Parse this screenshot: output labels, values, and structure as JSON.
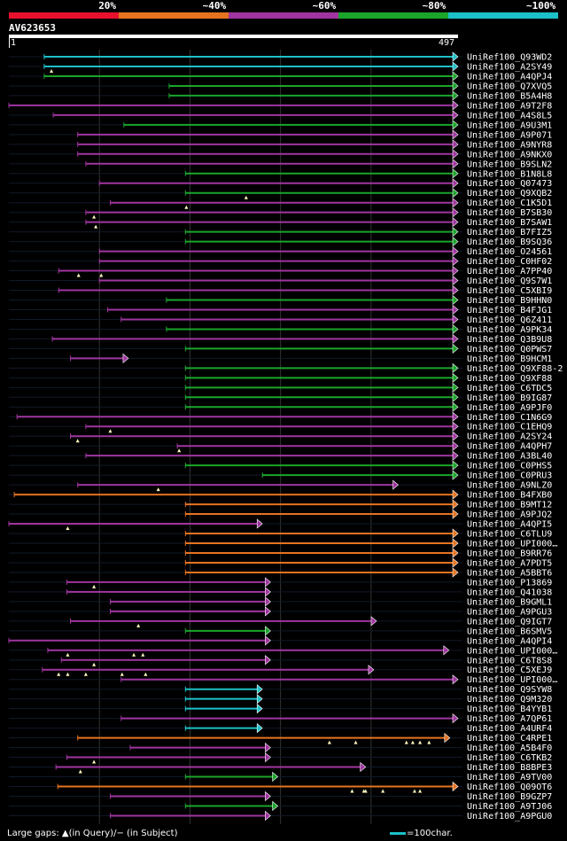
{
  "chart_data": {
    "type": "alignment-overview",
    "query": {
      "id": "AV623653",
      "start": 1,
      "end": 497
    },
    "legend": [
      {
        "label": "20%",
        "color": "#e8112d"
      },
      {
        "label": "~40%",
        "color": "#e67320"
      },
      {
        "label": "~60%",
        "color": "#a0359f"
      },
      {
        "label": "~80%",
        "color": "#1aa52a"
      },
      {
        "label": "~100%",
        "color": "#1cc0c8"
      }
    ],
    "footer": {
      "gaps": "Large gaps: ▲(in Query)/− (in Subject)",
      "scale": "=100char."
    },
    "hits": [
      {
        "name": "UniRef100_Q93WD2",
        "cls": 4,
        "start": 40,
        "end": 497,
        "arrow": true,
        "g": []
      },
      {
        "name": "UniRef100_A2SY49",
        "cls": 4,
        "start": 40,
        "end": 497,
        "arrow": true,
        "g": [
          48
        ]
      },
      {
        "name": "UniRef100_A4QPJ4",
        "cls": 3,
        "start": 40,
        "end": 497,
        "arrow": true,
        "g": []
      },
      {
        "name": "UniRef100_Q7XVQ5",
        "cls": 3,
        "start": 178,
        "end": 497,
        "arrow": true,
        "g": []
      },
      {
        "name": "UniRef100_B5A4H8",
        "cls": 3,
        "start": 178,
        "end": 497,
        "arrow": true,
        "g": []
      },
      {
        "name": "UniRef100_A9T2F8",
        "cls": 2,
        "start": 1,
        "end": 497,
        "arrow": true,
        "g": []
      },
      {
        "name": "UniRef100_A4S8L5",
        "cls": 2,
        "start": 50,
        "end": 497,
        "arrow": true,
        "g": []
      },
      {
        "name": "UniRef100_A9U3M1",
        "cls": 3,
        "start": 128,
        "end": 497,
        "arrow": true,
        "g": []
      },
      {
        "name": "UniRef100_A9P071",
        "cls": 2,
        "start": 77,
        "end": 497,
        "arrow": true,
        "g": []
      },
      {
        "name": "UniRef100_A9NYR8",
        "cls": 2,
        "start": 77,
        "end": 497,
        "arrow": true,
        "g": []
      },
      {
        "name": "UniRef100_A9NKX0",
        "cls": 2,
        "start": 77,
        "end": 497,
        "arrow": true,
        "g": []
      },
      {
        "name": "UniRef100_B9SLN2",
        "cls": 2,
        "start": 86,
        "end": 497,
        "arrow": true,
        "g": []
      },
      {
        "name": "UniRef100_B1N8L8",
        "cls": 3,
        "start": 196,
        "end": 497,
        "arrow": true,
        "g": []
      },
      {
        "name": "UniRef100_Q07473",
        "cls": 2,
        "start": 101,
        "end": 497,
        "arrow": true,
        "g": []
      },
      {
        "name": "UniRef100_Q9XQB2",
        "cls": 3,
        "start": 196,
        "end": 497,
        "arrow": true,
        "g": [
          263
        ]
      },
      {
        "name": "UniRef100_C1K5D1",
        "cls": 2,
        "start": 113,
        "end": 497,
        "arrow": true,
        "g": [
          197
        ]
      },
      {
        "name": "UniRef100_B7SB30",
        "cls": 2,
        "start": 86,
        "end": 497,
        "arrow": true,
        "g": [
          95
        ]
      },
      {
        "name": "UniRef100_B7SAW1",
        "cls": 2,
        "start": 86,
        "end": 497,
        "arrow": true,
        "g": [
          97
        ]
      },
      {
        "name": "UniRef100_B7FIZ5",
        "cls": 3,
        "start": 196,
        "end": 497,
        "arrow": true,
        "g": []
      },
      {
        "name": "UniRef100_B9SQ36",
        "cls": 3,
        "start": 196,
        "end": 497,
        "arrow": true,
        "g": []
      },
      {
        "name": "UniRef100_O24561",
        "cls": 2,
        "start": 101,
        "end": 497,
        "arrow": true,
        "g": []
      },
      {
        "name": "UniRef100_C0HF02",
        "cls": 2,
        "start": 101,
        "end": 497,
        "arrow": true,
        "g": []
      },
      {
        "name": "UniRef100_A7PP40",
        "cls": 2,
        "start": 56,
        "end": 497,
        "arrow": true,
        "g": [
          78,
          103
        ]
      },
      {
        "name": "UniRef100_Q9S7W1",
        "cls": 2,
        "start": 101,
        "end": 497,
        "arrow": true,
        "g": []
      },
      {
        "name": "UniRef100_C5XBI9",
        "cls": 2,
        "start": 56,
        "end": 497,
        "arrow": true,
        "g": []
      },
      {
        "name": "UniRef100_B9HHN0",
        "cls": 3,
        "start": 175,
        "end": 497,
        "arrow": true,
        "g": []
      },
      {
        "name": "UniRef100_B4FJG1",
        "cls": 2,
        "start": 110,
        "end": 497,
        "arrow": true,
        "g": []
      },
      {
        "name": "UniRef100_Q6Z411",
        "cls": 2,
        "start": 125,
        "end": 497,
        "arrow": true,
        "g": []
      },
      {
        "name": "UniRef100_A9PK34",
        "cls": 3,
        "start": 175,
        "end": 497,
        "arrow": true,
        "g": []
      },
      {
        "name": "UniRef100_Q3B9U8",
        "cls": 2,
        "start": 49,
        "end": 497,
        "arrow": true,
        "g": []
      },
      {
        "name": "UniRef100_Q0PWS7",
        "cls": 3,
        "start": 196,
        "end": 497,
        "arrow": true,
        "g": []
      },
      {
        "name": "UniRef100_B9HCM1",
        "cls": 2,
        "start": 69,
        "end": 133,
        "arrow": true,
        "g": []
      },
      {
        "name": "UniRef100_Q9XF88-2",
        "cls": 3,
        "start": 196,
        "end": 497,
        "arrow": true,
        "g": []
      },
      {
        "name": "UniRef100_Q9XF88",
        "cls": 3,
        "start": 196,
        "end": 497,
        "arrow": true,
        "g": []
      },
      {
        "name": "UniRef100_C6TDC5",
        "cls": 3,
        "start": 196,
        "end": 497,
        "arrow": true,
        "g": []
      },
      {
        "name": "UniRef100_B9IG87",
        "cls": 3,
        "start": 196,
        "end": 497,
        "arrow": true,
        "g": []
      },
      {
        "name": "UniRef100_A9PJF0",
        "cls": 3,
        "start": 196,
        "end": 497,
        "arrow": true,
        "g": []
      },
      {
        "name": "UniRef100_C1N6G9",
        "cls": 2,
        "start": 10,
        "end": 497,
        "arrow": true,
        "g": []
      },
      {
        "name": "UniRef100_C1EHQ9",
        "cls": 2,
        "start": 86,
        "end": 497,
        "arrow": true,
        "g": [
          113
        ]
      },
      {
        "name": "UniRef100_A2SY24",
        "cls": 2,
        "start": 69,
        "end": 497,
        "arrow": true,
        "g": [
          77
        ]
      },
      {
        "name": "UniRef100_A4QPH7",
        "cls": 2,
        "start": 187,
        "end": 497,
        "arrow": true,
        "g": [
          189
        ]
      },
      {
        "name": "UniRef100_A3BL40",
        "cls": 2,
        "start": 86,
        "end": 497,
        "arrow": true,
        "g": []
      },
      {
        "name": "UniRef100_C0PHS5",
        "cls": 3,
        "start": 196,
        "end": 497,
        "arrow": true,
        "g": []
      },
      {
        "name": "UniRef100_C0PRU3",
        "cls": 3,
        "start": 281,
        "end": 497,
        "arrow": true,
        "g": []
      },
      {
        "name": "UniRef100_A9NLZ0",
        "cls": 2,
        "start": 77,
        "end": 431,
        "arrow": true,
        "g": [
          166
        ]
      },
      {
        "name": "UniRef100_B4FXB0",
        "cls": 1,
        "start": 7,
        "end": 497,
        "arrow": true,
        "g": []
      },
      {
        "name": "UniRef100_B9MT12",
        "cls": 1,
        "start": 196,
        "end": 497,
        "arrow": true,
        "g": []
      },
      {
        "name": "UniRef100_A9PJQ2",
        "cls": 1,
        "start": 196,
        "end": 497,
        "arrow": true,
        "g": []
      },
      {
        "name": "UniRef100_A4QPI5",
        "cls": 2,
        "start": 1,
        "end": 281,
        "arrow": true,
        "g": [
          66
        ]
      },
      {
        "name": "UniRef100_C6TLU9",
        "cls": 1,
        "start": 196,
        "end": 497,
        "arrow": true,
        "g": []
      },
      {
        "name": "UniRef100_UPI000…",
        "cls": 1,
        "start": 196,
        "end": 497,
        "arrow": true,
        "g": []
      },
      {
        "name": "UniRef100_B9RR76",
        "cls": 1,
        "start": 196,
        "end": 497,
        "arrow": true,
        "g": []
      },
      {
        "name": "UniRef100_A7PDT5",
        "cls": 1,
        "start": 196,
        "end": 497,
        "arrow": true,
        "g": []
      },
      {
        "name": "UniRef100_A5BBT6",
        "cls": 1,
        "start": 196,
        "end": 497,
        "arrow": true,
        "g": []
      },
      {
        "name": "UniRef100_P13869",
        "cls": 2,
        "start": 65,
        "end": 290,
        "arrow": true,
        "g": [
          95
        ]
      },
      {
        "name": "UniRef100_Q41038",
        "cls": 2,
        "start": 65,
        "end": 290,
        "arrow": true,
        "g": []
      },
      {
        "name": "UniRef100_B9GML1",
        "cls": 2,
        "start": 113,
        "end": 290,
        "arrow": true,
        "g": []
      },
      {
        "name": "UniRef100_A9PGU3",
        "cls": 2,
        "start": 113,
        "end": 290,
        "arrow": true,
        "g": []
      },
      {
        "name": "UniRef100_Q9IGT7",
        "cls": 2,
        "start": 69,
        "end": 407,
        "arrow": true,
        "g": [
          144
        ]
      },
      {
        "name": "UniRef100_B6SMV5",
        "cls": 3,
        "start": 196,
        "end": 290,
        "arrow": true,
        "g": []
      },
      {
        "name": "UniRef100_A4QPI4",
        "cls": 2,
        "start": 1,
        "end": 290,
        "arrow": true,
        "g": []
      },
      {
        "name": "UniRef100_UPI000…",
        "cls": 2,
        "start": 44,
        "end": 487,
        "arrow": true,
        "g": [
          66,
          139,
          149
        ]
      },
      {
        "name": "UniRef100_C6T8S8",
        "cls": 2,
        "start": 59,
        "end": 290,
        "arrow": true,
        "g": [
          95
        ]
      },
      {
        "name": "UniRef100_C5XEJ9",
        "cls": 2,
        "start": 38,
        "end": 404,
        "arrow": true,
        "g": [
          56,
          66,
          86,
          126,
          152
        ]
      },
      {
        "name": "UniRef100_UPI000…",
        "cls": 2,
        "start": 125,
        "end": 497,
        "arrow": true,
        "g": []
      },
      {
        "name": "UniRef100_Q9SYW8",
        "cls": 4,
        "start": 196,
        "end": 281,
        "arrow": true,
        "g": []
      },
      {
        "name": "UniRef100_Q9M320",
        "cls": 4,
        "start": 196,
        "end": 281,
        "arrow": true,
        "g": []
      },
      {
        "name": "UniRef100_B4YYB1",
        "cls": 4,
        "start": 196,
        "end": 281,
        "arrow": true,
        "g": []
      },
      {
        "name": "UniRef100_A7QP61",
        "cls": 2,
        "start": 125,
        "end": 497,
        "arrow": true,
        "g": []
      },
      {
        "name": "UniRef100_A4URF4",
        "cls": 4,
        "start": 196,
        "end": 281,
        "arrow": true,
        "g": []
      },
      {
        "name": "UniRef100_C4RPE1",
        "cls": 1,
        "start": 77,
        "end": 488,
        "arrow": true,
        "g": [
          355,
          384,
          440,
          447,
          455,
          465
        ]
      },
      {
        "name": "UniRef100_A5B4F0",
        "cls": 2,
        "start": 135,
        "end": 290,
        "arrow": true,
        "g": []
      },
      {
        "name": "UniRef100_C6TKB2",
        "cls": 2,
        "start": 65,
        "end": 290,
        "arrow": true,
        "g": [
          95
        ]
      },
      {
        "name": "UniRef100_B8BPE3",
        "cls": 2,
        "start": 53,
        "end": 395,
        "arrow": true,
        "g": [
          80
        ]
      },
      {
        "name": "UniRef100_A9TV00",
        "cls": 3,
        "start": 196,
        "end": 298,
        "arrow": true,
        "g": []
      },
      {
        "name": "UniRef100_Q09OT6",
        "cls": 1,
        "start": 55,
        "end": 497,
        "arrow": true,
        "g": [
          380,
          393,
          395,
          414,
          449,
          455
        ]
      },
      {
        "name": "UniRef100_B9GZP7",
        "cls": 2,
        "start": 113,
        "end": 290,
        "arrow": true,
        "g": []
      },
      {
        "name": "UniRef100_A9TJ06",
        "cls": 3,
        "start": 196,
        "end": 298,
        "arrow": true,
        "g": []
      },
      {
        "name": "UniRef100_A9PGU0",
        "cls": 2,
        "start": 113,
        "end": 290,
        "arrow": true,
        "g": []
      }
    ]
  }
}
